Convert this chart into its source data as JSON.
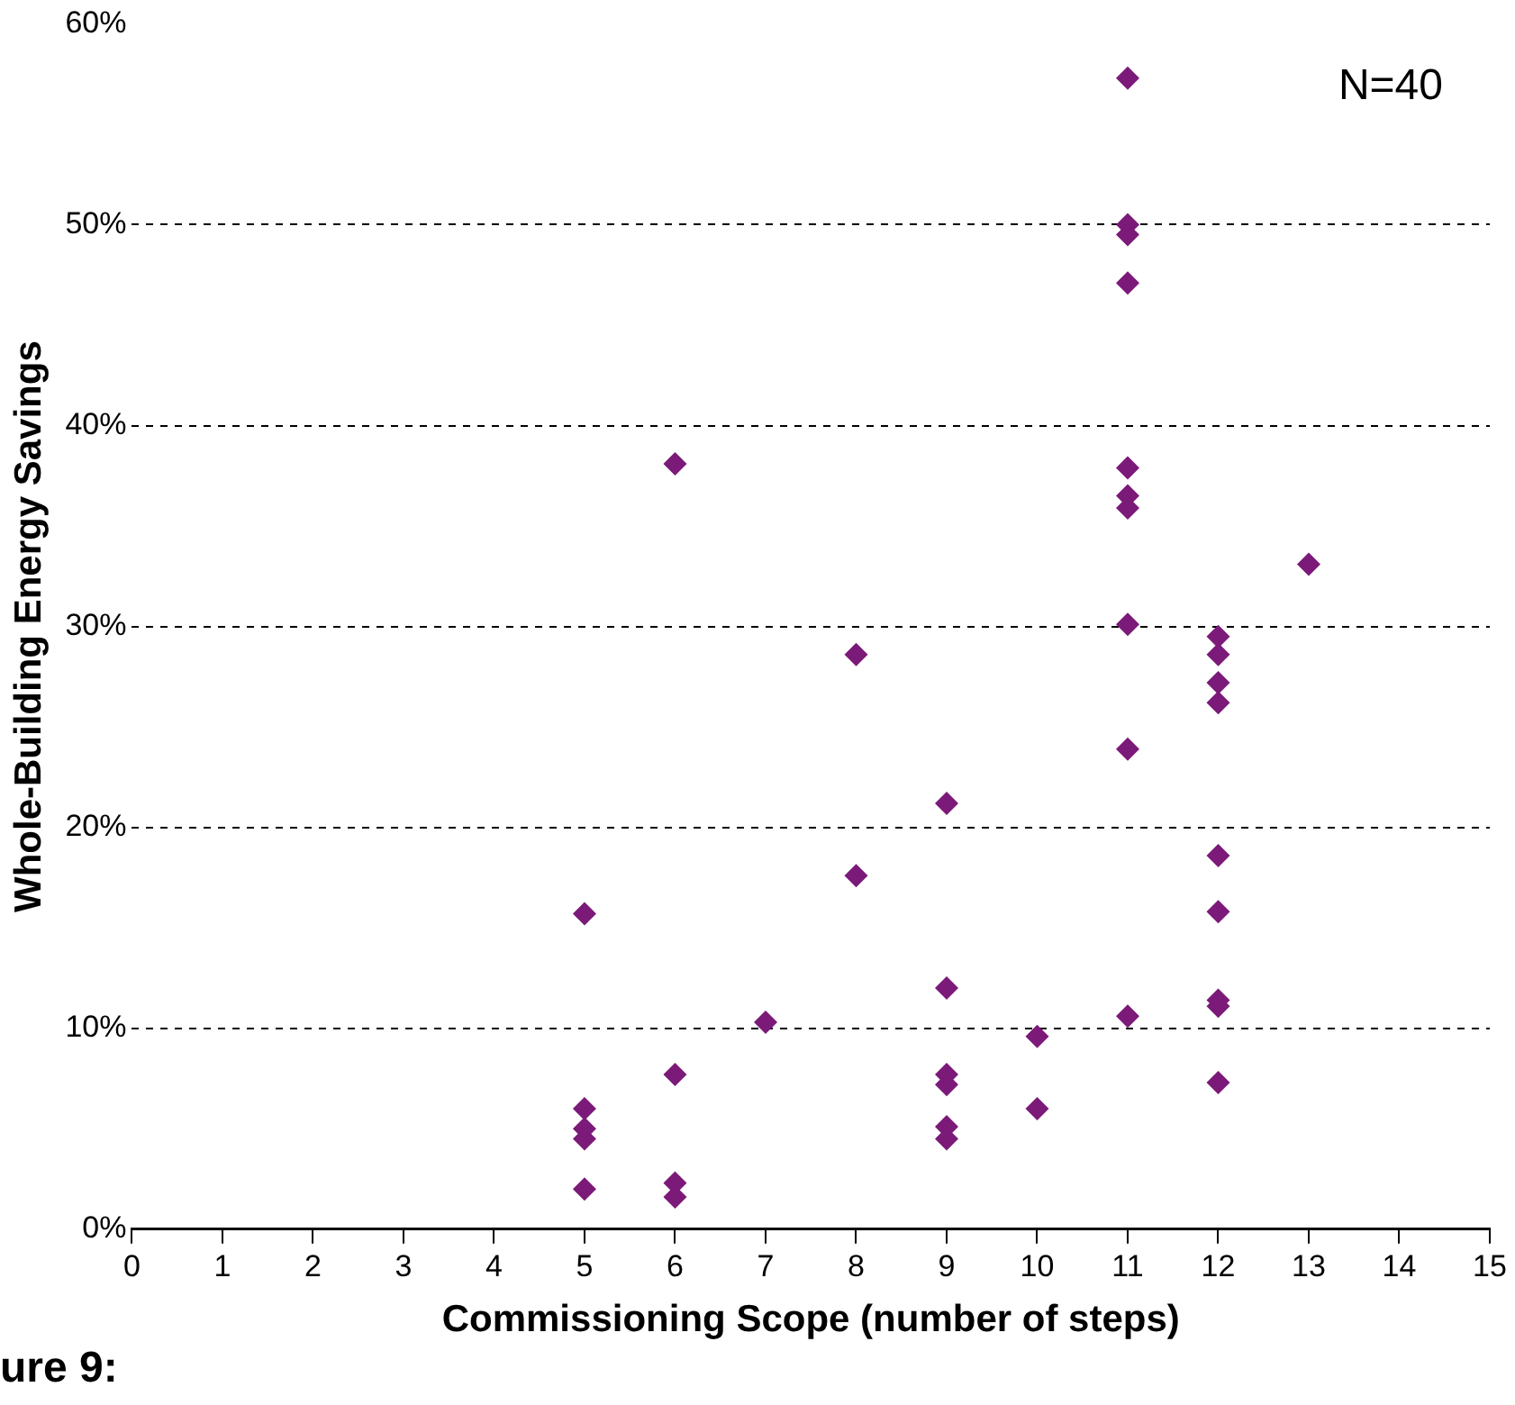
{
  "chart_data": {
    "type": "scatter",
    "xlabel": "Commissioning Scope (number of steps)",
    "ylabel": "Whole-Building Energy Savings",
    "series": [
      {
        "color": "#7b1a78",
        "marker": "diamond",
        "x": [
          5,
          5,
          5,
          5,
          5,
          6,
          6,
          6,
          6,
          7,
          8,
          8,
          9,
          9,
          9,
          9,
          9,
          9,
          10,
          10,
          11,
          11,
          11,
          11,
          11,
          11,
          11,
          11,
          11,
          11,
          12,
          12,
          12,
          12,
          12,
          12,
          12,
          12,
          12,
          13
        ],
        "values": [
          15.7,
          6.0,
          5.0,
          4.5,
          2.0,
          38.1,
          7.7,
          2.3,
          1.6,
          10.3,
          28.6,
          17.6,
          21.2,
          12.0,
          7.7,
          7.2,
          5.1,
          4.5,
          9.6,
          6.0,
          57.3,
          50.0,
          49.5,
          47.1,
          37.9,
          36.5,
          35.9,
          30.1,
          23.9,
          10.6,
          29.5,
          28.6,
          27.2,
          26.2,
          18.6,
          15.8,
          11.4,
          11.1,
          7.3,
          33.1
        ]
      }
    ],
    "xlim": [
      0,
      15
    ],
    "xticks": [
      0,
      1,
      2,
      3,
      4,
      5,
      6,
      7,
      8,
      9,
      10,
      11,
      12,
      13,
      14,
      15
    ],
    "ylim": [
      0,
      60
    ],
    "yticks": [
      {
        "value": 0,
        "label": "0%"
      },
      {
        "value": 10,
        "label": "10%"
      },
      {
        "value": 20,
        "label": "20%"
      },
      {
        "value": 30,
        "label": "30%"
      },
      {
        "value": 40,
        "label": "40%"
      },
      {
        "value": 50,
        "label": "50%"
      },
      {
        "value": 60,
        "label": "60%"
      }
    ],
    "grid": "y",
    "legend": false,
    "annotations": [
      "N=40",
      "ure 9:"
    ]
  }
}
